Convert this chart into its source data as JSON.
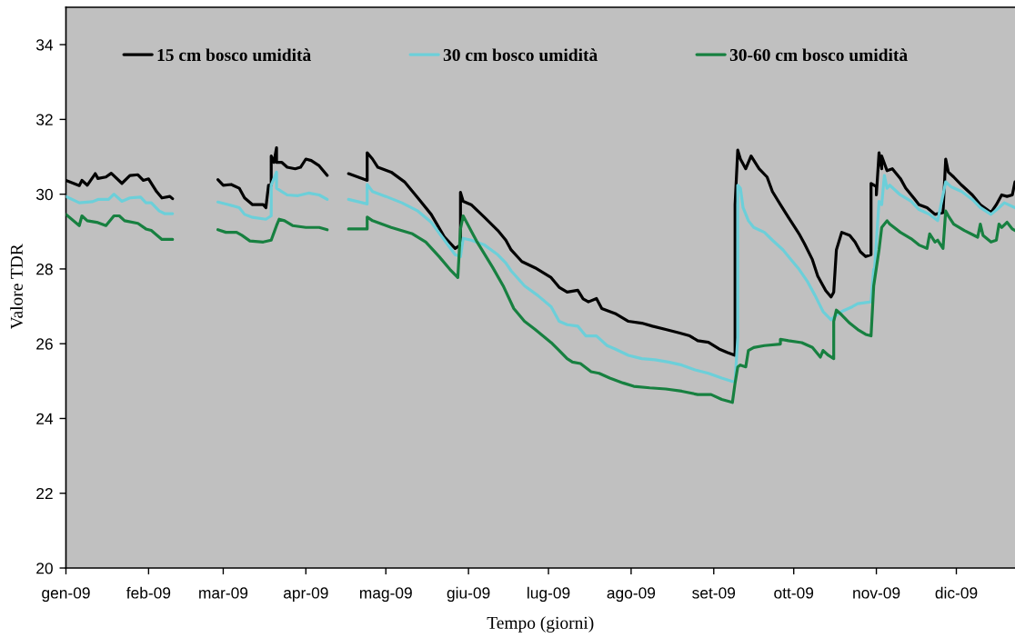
{
  "chart_data": {
    "type": "line",
    "xlabel": "Tempo (giorni)",
    "ylabel": "Valore TDR",
    "xlim": [
      "2009-01-01",
      "2009-12-23"
    ],
    "xticks": [
      {
        "value": "2009-01",
        "label": "gen-09"
      },
      {
        "value": "2009-02",
        "label": "feb-09"
      },
      {
        "value": "2009-03",
        "label": "mar-09"
      },
      {
        "value": "2009-04",
        "label": "apr-09"
      },
      {
        "value": "2009-05",
        "label": "mag-09"
      },
      {
        "value": "2009-06",
        "label": "giu-09"
      },
      {
        "value": "2009-07",
        "label": "lug-09"
      },
      {
        "value": "2009-08",
        "label": "ago-09"
      },
      {
        "value": "2009-09",
        "label": "set-09"
      },
      {
        "value": "2009-10",
        "label": "ott-09"
      },
      {
        "value": "2009-11",
        "label": "nov-09"
      },
      {
        "value": "2009-12",
        "label": "dic-09"
      }
    ],
    "ylim": [
      20,
      35
    ],
    "yticks": [
      20,
      22,
      24,
      26,
      28,
      30,
      32,
      34
    ],
    "legend": "top",
    "line_style": "solid",
    "series": [
      {
        "name": "15 cm bosco umidità",
        "color": "#000000",
        "x": [
          "2009-01-01",
          "2009-01-06",
          "2009-01-07",
          "2009-01-09",
          "2009-01-12",
          "2009-01-13",
          "2009-01-16",
          "2009-01-18",
          "2009-01-22",
          "2009-01-25",
          "2009-01-28",
          "2009-01-30",
          "2009-02-01",
          "2009-02-04",
          "2009-02-06",
          "2009-02-09",
          "2009-02-10",
          "2009-02-18",
          "2009-02-27",
          "2009-03-01",
          "2009-03-04",
          "2009-03-07",
          "2009-03-09",
          "2009-03-12",
          "2009-03-16",
          "2009-03-17",
          "2009-03-18",
          "2009-03-19",
          "2009-03-19",
          "2009-03-20",
          "2009-03-21",
          "2009-03-21",
          "2009-03-23",
          "2009-03-25",
          "2009-03-28",
          "2009-03-30",
          "2009-04-01",
          "2009-04-03",
          "2009-04-06",
          "2009-04-09",
          "2009-04-13",
          "2009-04-17",
          "2009-04-24",
          "2009-04-24",
          "2009-04-26",
          "2009-04-28",
          "2009-05-03",
          "2009-05-08",
          "2009-05-13",
          "2009-05-18",
          "2009-05-23",
          "2009-05-27",
          "2009-05-29",
          "2009-05-29",
          "2009-05-30",
          "2009-06-02",
          "2009-06-07",
          "2009-06-12",
          "2009-06-15",
          "2009-06-17",
          "2009-06-21",
          "2009-06-26",
          "2009-07-02",
          "2009-07-05",
          "2009-07-08",
          "2009-07-12",
          "2009-07-14",
          "2009-07-16",
          "2009-07-19",
          "2009-07-21",
          "2009-07-26",
          "2009-07-31",
          "2009-08-05",
          "2009-08-09",
          "2009-08-14",
          "2009-08-19",
          "2009-08-23",
          "2009-08-26",
          "2009-08-30",
          "2009-09-03",
          "2009-09-06",
          "2009-09-09",
          "2009-09-09",
          "2009-09-10",
          "2009-09-11",
          "2009-09-13",
          "2009-09-15",
          "2009-09-18",
          "2009-09-21",
          "2009-09-23",
          "2009-09-26",
          "2009-09-29",
          "2009-10-03",
          "2009-10-05",
          "2009-10-08",
          "2009-10-10",
          "2009-10-13",
          "2009-10-15",
          "2009-10-16",
          "2009-10-17",
          "2009-10-19",
          "2009-10-22",
          "2009-10-24",
          "2009-10-26",
          "2009-10-28",
          "2009-10-30",
          "2009-10-30",
          "2009-11-01",
          "2009-11-01",
          "2009-11-02",
          "2009-11-03",
          "2009-11-03",
          "2009-11-05",
          "2009-11-07",
          "2009-11-10",
          "2009-11-12",
          "2009-11-15",
          "2009-11-17",
          "2009-11-20",
          "2009-11-23",
          "2009-11-26",
          "2009-11-27",
          "2009-11-28",
          "2009-11-30",
          "2009-12-03",
          "2009-12-07",
          "2009-12-10",
          "2009-12-14",
          "2009-12-16",
          "2009-12-18",
          "2009-12-20",
          "2009-12-22",
          "2009-12-23"
        ],
        "values": [
          30.37,
          30.23,
          30.37,
          30.24,
          30.55,
          30.42,
          30.46,
          30.56,
          30.29,
          30.5,
          30.52,
          30.37,
          30.41,
          30.07,
          29.9,
          29.94,
          29.88,
          null,
          30.39,
          30.24,
          30.26,
          30.16,
          29.9,
          29.72,
          29.72,
          29.64,
          30.24,
          30.24,
          31.02,
          30.85,
          31.24,
          30.85,
          30.85,
          30.72,
          30.68,
          30.72,
          30.94,
          30.9,
          30.76,
          30.5,
          null,
          30.55,
          30.37,
          31.11,
          30.94,
          30.72,
          30.59,
          30.33,
          29.9,
          29.46,
          28.85,
          28.55,
          28.64,
          30.05,
          29.81,
          29.72,
          29.38,
          29.03,
          28.77,
          28.51,
          28.2,
          28.03,
          27.77,
          27.51,
          27.38,
          27.43,
          27.2,
          27.12,
          27.21,
          26.94,
          26.81,
          26.6,
          26.55,
          26.47,
          26.38,
          26.29,
          26.21,
          26.08,
          26.04,
          25.86,
          25.77,
          25.69,
          29.72,
          31.18,
          30.94,
          30.68,
          31.02,
          30.68,
          30.46,
          30.07,
          29.72,
          29.38,
          28.94,
          28.68,
          28.25,
          27.81,
          27.42,
          27.25,
          27.38,
          28.51,
          28.98,
          28.9,
          28.72,
          28.46,
          28.33,
          28.38,
          30.29,
          30.2,
          29.98,
          31.11,
          30.68,
          31.02,
          30.63,
          30.68,
          30.42,
          30.16,
          29.9,
          29.72,
          29.64,
          29.46,
          29.51,
          30.94,
          30.59,
          30.46,
          30.24,
          29.98,
          29.72,
          29.51,
          29.72,
          29.98,
          29.94,
          29.98,
          30.33
        ]
      },
      {
        "name": "30 cm bosco umidità",
        "color": "#6ccfd9",
        "x": [
          "2009-01-01",
          "2009-01-06",
          "2009-01-11",
          "2009-01-13",
          "2009-01-17",
          "2009-01-19",
          "2009-01-22",
          "2009-01-25",
          "2009-01-29",
          "2009-01-31",
          "2009-02-02",
          "2009-02-05",
          "2009-02-07",
          "2009-02-10",
          "2009-02-18",
          "2009-02-27",
          "2009-03-03",
          "2009-03-07",
          "2009-03-09",
          "2009-03-12",
          "2009-03-17",
          "2009-03-19",
          "2009-03-19",
          "2009-03-21",
          "2009-03-21",
          "2009-03-23",
          "2009-03-25",
          "2009-03-29",
          "2009-04-02",
          "2009-04-06",
          "2009-04-09",
          "2009-04-13",
          "2009-04-17",
          "2009-04-24",
          "2009-04-24",
          "2009-04-26",
          "2009-05-01",
          "2009-05-07",
          "2009-05-13",
          "2009-05-18",
          "2009-05-23",
          "2009-05-27",
          "2009-05-29",
          "2009-05-30",
          "2009-06-02",
          "2009-06-07",
          "2009-06-12",
          "2009-06-15",
          "2009-06-17",
          "2009-06-22",
          "2009-06-27",
          "2009-07-02",
          "2009-07-05",
          "2009-07-08",
          "2009-07-12",
          "2009-07-15",
          "2009-07-19",
          "2009-07-23",
          "2009-07-26",
          "2009-07-31",
          "2009-08-05",
          "2009-08-10",
          "2009-08-15",
          "2009-08-20",
          "2009-08-25",
          "2009-08-30",
          "2009-09-04",
          "2009-09-08",
          "2009-09-09",
          "2009-09-10",
          "2009-09-10",
          "2009-09-11",
          "2009-09-12",
          "2009-09-14",
          "2009-09-16",
          "2009-09-20",
          "2009-09-23",
          "2009-09-27",
          "2009-09-30",
          "2009-10-03",
          "2009-10-06",
          "2009-10-09",
          "2009-10-12",
          "2009-10-15",
          "2009-10-17",
          "2009-10-19",
          "2009-10-23",
          "2009-10-25",
          "2009-10-30",
          "2009-10-31",
          "2009-10-31",
          "2009-11-02",
          "2009-11-03",
          "2009-11-04",
          "2009-11-05",
          "2009-11-06",
          "2009-11-10",
          "2009-11-14",
          "2009-11-17",
          "2009-11-21",
          "2009-11-24",
          "2009-11-27",
          "2009-11-29",
          "2009-12-03",
          "2009-12-07",
          "2009-12-10",
          "2009-12-14",
          "2009-12-17",
          "2009-12-19",
          "2009-12-23"
        ],
        "values": [
          29.94,
          29.77,
          29.8,
          29.86,
          29.86,
          30.0,
          29.81,
          29.9,
          29.92,
          29.77,
          29.77,
          29.55,
          29.48,
          29.48,
          null,
          29.79,
          29.72,
          29.64,
          29.46,
          29.38,
          29.33,
          29.42,
          30.24,
          30.59,
          30.16,
          30.07,
          29.98,
          29.96,
          30.03,
          29.98,
          29.86,
          null,
          29.86,
          29.74,
          30.26,
          30.07,
          29.94,
          29.77,
          29.55,
          29.25,
          28.77,
          28.38,
          28.33,
          28.82,
          28.77,
          28.64,
          28.38,
          28.16,
          27.95,
          27.55,
          27.29,
          26.99,
          26.6,
          26.51,
          26.47,
          26.21,
          26.21,
          25.95,
          25.86,
          25.69,
          25.6,
          25.57,
          25.51,
          25.43,
          25.3,
          25.21,
          25.08,
          24.99,
          24.99,
          26.16,
          30.24,
          30.16,
          29.64,
          29.29,
          29.11,
          28.98,
          28.77,
          28.51,
          28.25,
          27.99,
          27.68,
          27.29,
          26.86,
          26.64,
          26.77,
          26.86,
          26.99,
          27.07,
          27.12,
          27.99,
          27.64,
          29.81,
          29.72,
          30.5,
          30.16,
          30.24,
          29.98,
          29.81,
          29.59,
          29.46,
          29.29,
          30.33,
          30.2,
          30.07,
          29.86,
          29.64,
          29.46,
          29.64,
          29.77,
          29.64
        ]
      },
      {
        "name": "30-60 cm bosco umidità",
        "color": "#178040",
        "x": [
          "2009-01-01",
          "2009-01-06",
          "2009-01-07",
          "2009-01-09",
          "2009-01-13",
          "2009-01-16",
          "2009-01-19",
          "2009-01-21",
          "2009-01-23",
          "2009-01-28",
          "2009-01-31",
          "2009-02-02",
          "2009-02-06",
          "2009-02-10",
          "2009-02-18",
          "2009-02-27",
          "2009-03-02",
          "2009-03-06",
          "2009-03-08",
          "2009-03-11",
          "2009-03-16",
          "2009-03-19",
          "2009-03-21",
          "2009-03-22",
          "2009-03-24",
          "2009-03-27",
          "2009-04-01",
          "2009-04-06",
          "2009-04-09",
          "2009-04-13",
          "2009-04-17",
          "2009-04-24",
          "2009-04-24",
          "2009-04-26",
          "2009-05-03",
          "2009-05-11",
          "2009-05-16",
          "2009-05-21",
          "2009-05-25",
          "2009-05-28",
          "2009-05-29",
          "2009-05-30",
          "2009-06-04",
          "2009-06-10",
          "2009-06-14",
          "2009-06-18",
          "2009-06-22",
          "2009-06-26",
          "2009-07-02",
          "2009-07-05",
          "2009-07-08",
          "2009-07-10",
          "2009-07-13",
          "2009-07-17",
          "2009-07-20",
          "2009-07-24",
          "2009-07-29",
          "2009-08-02",
          "2009-08-08",
          "2009-08-14",
          "2009-08-20",
          "2009-08-26",
          "2009-08-31",
          "2009-09-04",
          "2009-09-08",
          "2009-09-09",
          "2009-09-10",
          "2009-09-11",
          "2009-09-13",
          "2009-09-14",
          "2009-09-16",
          "2009-09-20",
          "2009-09-26",
          "2009-09-26",
          "2009-09-29",
          "2009-10-04",
          "2009-10-08",
          "2009-10-11",
          "2009-10-12",
          "2009-10-14",
          "2009-10-16",
          "2009-10-16",
          "2009-10-17",
          "2009-10-19",
          "2009-10-22",
          "2009-10-25",
          "2009-10-28",
          "2009-10-30",
          "2009-10-31",
          "2009-11-02",
          "2009-11-03",
          "2009-11-05",
          "2009-11-06",
          "2009-11-10",
          "2009-11-14",
          "2009-11-17",
          "2009-11-20",
          "2009-11-21",
          "2009-11-23",
          "2009-11-24",
          "2009-11-26",
          "2009-11-27",
          "2009-11-28",
          "2009-11-30",
          "2009-12-04",
          "2009-12-09",
          "2009-12-10",
          "2009-12-11",
          "2009-12-14",
          "2009-12-16",
          "2009-12-17",
          "2009-12-18",
          "2009-12-20",
          "2009-12-22",
          "2009-12-23"
        ],
        "values": [
          29.46,
          29.16,
          29.42,
          29.29,
          29.24,
          29.16,
          29.42,
          29.42,
          29.29,
          29.22,
          29.07,
          29.03,
          28.79,
          28.79,
          null,
          29.05,
          28.98,
          28.98,
          28.9,
          28.75,
          28.72,
          28.77,
          29.16,
          29.33,
          29.29,
          29.16,
          29.11,
          29.11,
          29.05,
          null,
          29.07,
          29.07,
          29.39,
          29.29,
          29.11,
          28.94,
          28.72,
          28.33,
          27.99,
          27.77,
          29.07,
          29.42,
          28.75,
          28.05,
          27.55,
          26.94,
          26.6,
          26.38,
          26.03,
          25.82,
          25.6,
          25.51,
          25.47,
          25.25,
          25.21,
          25.08,
          24.95,
          24.86,
          24.82,
          24.79,
          24.73,
          24.64,
          24.64,
          24.51,
          24.43,
          24.95,
          25.38,
          25.43,
          25.38,
          25.82,
          25.9,
          25.95,
          25.99,
          26.12,
          26.08,
          26.03,
          25.9,
          25.64,
          25.82,
          25.69,
          25.6,
          26.6,
          26.9,
          26.77,
          26.55,
          26.38,
          26.25,
          26.21,
          27.55,
          28.51,
          29.11,
          29.29,
          29.2,
          28.98,
          28.81,
          28.64,
          28.55,
          28.94,
          28.72,
          28.77,
          28.55,
          29.55,
          29.42,
          29.2,
          29.03,
          28.85,
          29.2,
          28.9,
          28.72,
          28.77,
          29.2,
          29.11,
          29.25,
          29.07,
          29.03
        ]
      }
    ]
  }
}
